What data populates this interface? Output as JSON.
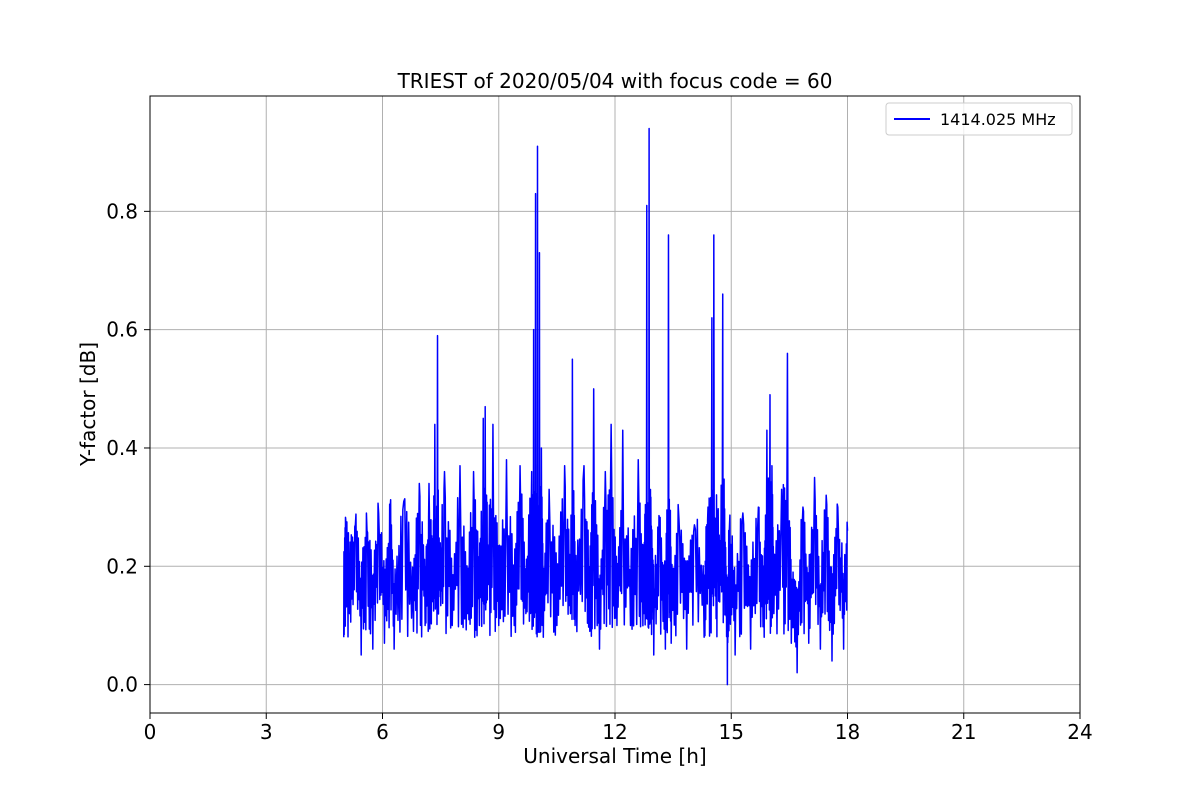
{
  "chart_data": {
    "type": "line",
    "title": "TRIEST of 2020/05/04 with focus code = 60",
    "xlabel": "Universal Time [h]",
    "ylabel": "Y-factor [dB]",
    "xlim": [
      0,
      24
    ],
    "ylim": [
      -0.048,
      0.995
    ],
    "xticks": [
      0,
      3,
      6,
      9,
      12,
      15,
      18,
      21,
      24
    ],
    "yticks": [
      0.0,
      0.2,
      0.4,
      0.6,
      0.8
    ],
    "ytick_labels": [
      "0.0",
      "0.2",
      "0.4",
      "0.6",
      "0.8"
    ],
    "grid": true,
    "legend_position": "upper right",
    "series": [
      {
        "name": "1414.025 MHz",
        "color": "#0000ff",
        "x_range": [
          5.0,
          18.0
        ],
        "points": [
          [
            5.0,
            0.08
          ],
          [
            5.05,
            0.28
          ],
          [
            5.15,
            0.12
          ],
          [
            5.3,
            0.27
          ],
          [
            5.45,
            0.05
          ],
          [
            5.6,
            0.26
          ],
          [
            5.75,
            0.06
          ],
          [
            5.9,
            0.29
          ],
          [
            6.05,
            0.07
          ],
          [
            6.2,
            0.3
          ],
          [
            6.3,
            0.06
          ],
          [
            6.55,
            0.31
          ],
          [
            6.8,
            0.09
          ],
          [
            6.95,
            0.34
          ],
          [
            7.1,
            0.1
          ],
          [
            7.2,
            0.34
          ],
          [
            7.3,
            0.14
          ],
          [
            7.35,
            0.44
          ],
          [
            7.42,
            0.59
          ],
          [
            7.48,
            0.16
          ],
          [
            7.6,
            0.36
          ],
          [
            7.8,
            0.1
          ],
          [
            8.0,
            0.37
          ],
          [
            8.2,
            0.12
          ],
          [
            8.35,
            0.36
          ],
          [
            8.5,
            0.1
          ],
          [
            8.6,
            0.45
          ],
          [
            8.65,
            0.47
          ],
          [
            8.72,
            0.18
          ],
          [
            8.85,
            0.44
          ],
          [
            9.0,
            0.1
          ],
          [
            9.2,
            0.38
          ],
          [
            9.4,
            0.1
          ],
          [
            9.55,
            0.37
          ],
          [
            9.7,
            0.12
          ],
          [
            9.85,
            0.36
          ],
          [
            9.9,
            0.6
          ],
          [
            9.95,
            0.83
          ],
          [
            10.0,
            0.91
          ],
          [
            10.05,
            0.73
          ],
          [
            10.1,
            0.4
          ],
          [
            10.15,
            0.08
          ],
          [
            10.3,
            0.33
          ],
          [
            10.5,
            0.1
          ],
          [
            10.7,
            0.37
          ],
          [
            10.85,
            0.12
          ],
          [
            10.9,
            0.55
          ],
          [
            10.97,
            0.1
          ],
          [
            11.2,
            0.37
          ],
          [
            11.35,
            0.09
          ],
          [
            11.45,
            0.5
          ],
          [
            11.6,
            0.06
          ],
          [
            11.75,
            0.36
          ],
          [
            11.9,
            0.44
          ],
          [
            12.05,
            0.1
          ],
          [
            12.2,
            0.43
          ],
          [
            12.4,
            0.1
          ],
          [
            12.6,
            0.38
          ],
          [
            12.75,
            0.12
          ],
          [
            12.82,
            0.81
          ],
          [
            12.88,
            0.94
          ],
          [
            12.93,
            0.23
          ],
          [
            13.0,
            0.05
          ],
          [
            13.15,
            0.28
          ],
          [
            13.3,
            0.06
          ],
          [
            13.38,
            0.76
          ],
          [
            13.45,
            0.07
          ],
          [
            13.65,
            0.28
          ],
          [
            13.85,
            0.06
          ],
          [
            14.05,
            0.27
          ],
          [
            14.3,
            0.08
          ],
          [
            14.4,
            0.3
          ],
          [
            14.5,
            0.62
          ],
          [
            14.55,
            0.76
          ],
          [
            14.65,
            0.22
          ],
          [
            14.78,
            0.66
          ],
          [
            14.85,
            0.16
          ],
          [
            14.9,
            0.0
          ],
          [
            14.95,
            0.26
          ],
          [
            15.1,
            0.05
          ],
          [
            15.3,
            0.29
          ],
          [
            15.5,
            0.06
          ],
          [
            15.7,
            0.3
          ],
          [
            15.85,
            0.08
          ],
          [
            15.92,
            0.43
          ],
          [
            16.0,
            0.49
          ],
          [
            16.05,
            0.37
          ],
          [
            16.1,
            0.12
          ],
          [
            16.3,
            0.33
          ],
          [
            16.45,
            0.56
          ],
          [
            16.55,
            0.07
          ],
          [
            16.7,
            0.02
          ],
          [
            16.85,
            0.3
          ],
          [
            17.0,
            0.07
          ],
          [
            17.15,
            0.35
          ],
          [
            17.3,
            0.06
          ],
          [
            17.45,
            0.32
          ],
          [
            17.6,
            0.04
          ],
          [
            17.75,
            0.3
          ],
          [
            17.9,
            0.06
          ],
          [
            18.0,
            0.26
          ]
        ]
      }
    ]
  }
}
